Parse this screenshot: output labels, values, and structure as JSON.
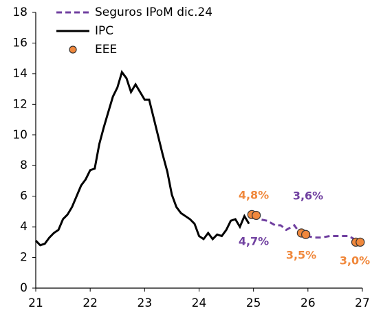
{
  "chart_data": {
    "type": "line",
    "xlim": [
      21,
      27
    ],
    "xticks": [
      21,
      22,
      23,
      24,
      25,
      26,
      27
    ],
    "ylim": [
      0,
      18
    ],
    "yticks": [
      0,
      2,
      4,
      6,
      8,
      10,
      12,
      14,
      16,
      18
    ],
    "grid": false,
    "legend": "top-left",
    "series": [
      {
        "name": "Seguros IPoM dic.24",
        "color": "#7040a0",
        "mode": "dashed",
        "x": [
          25.0,
          25.1,
          25.25,
          25.4,
          25.5,
          25.6,
          25.75,
          25.85,
          26.0,
          26.1,
          26.25,
          26.4,
          26.6,
          26.75,
          26.9
        ],
        "values": [
          4.7,
          4.5,
          4.4,
          4.1,
          4.1,
          3.8,
          4.1,
          3.6,
          3.4,
          3.3,
          3.3,
          3.4,
          3.4,
          3.4,
          3.1
        ]
      },
      {
        "name": "IPC",
        "color": "#000000",
        "mode": "solid",
        "x": [
          21.0,
          21.083,
          21.167,
          21.25,
          21.333,
          21.417,
          21.5,
          21.583,
          21.667,
          21.75,
          21.833,
          21.917,
          22.0,
          22.083,
          22.167,
          22.25,
          22.333,
          22.417,
          22.5,
          22.583,
          22.667,
          22.75,
          22.833,
          22.917,
          23.0,
          23.083,
          23.167,
          23.25,
          23.333,
          23.417,
          23.5,
          23.583,
          23.667,
          23.75,
          23.833,
          23.917,
          24.0,
          24.083,
          24.167,
          24.25,
          24.333,
          24.417,
          24.5,
          24.583,
          24.667,
          24.75,
          24.833,
          24.917
        ],
        "values": [
          3.1,
          2.8,
          2.9,
          3.3,
          3.6,
          3.8,
          4.5,
          4.8,
          5.3,
          6.0,
          6.7,
          7.1,
          7.7,
          7.8,
          9.4,
          10.5,
          11.5,
          12.5,
          13.1,
          14.1,
          13.7,
          12.8,
          13.3,
          12.8,
          12.3,
          12.3,
          11.1,
          9.9,
          8.7,
          7.6,
          6.1,
          5.3,
          4.9,
          4.7,
          4.5,
          4.2,
          3.4,
          3.2,
          3.6,
          3.2,
          3.5,
          3.4,
          3.8,
          4.4,
          4.5,
          4.0,
          4.7,
          4.2
        ]
      },
      {
        "name": "EEE",
        "color": "#f0883c",
        "mode": "markers",
        "x": [
          24.97,
          25.05,
          25.88,
          25.96,
          26.88,
          26.96
        ],
        "values": [
          4.8,
          4.75,
          3.6,
          3.5,
          3.0,
          3.0
        ]
      }
    ],
    "annotations": [
      {
        "text": "4,8%",
        "color": "#f0883c"
      },
      {
        "text": "4,7%",
        "color": "#7040a0"
      },
      {
        "text": "3,6%",
        "color": "#7040a0"
      },
      {
        "text": "3,5%",
        "color": "#f0883c"
      },
      {
        "text": "3,0%",
        "color": "#f0883c"
      }
    ]
  }
}
